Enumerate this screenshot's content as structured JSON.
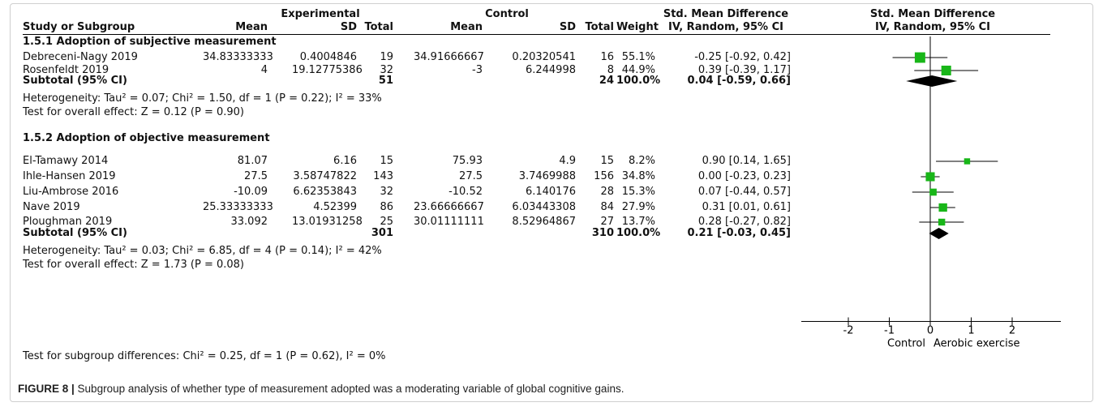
{
  "chart_data": {
    "type": "forest",
    "column_groups": {
      "experimental": "Experimental",
      "control": "Control",
      "smd_ci": "Std. Mean Difference",
      "smd_plot": "Std. Mean Difference"
    },
    "columns": {
      "study": "Study or Subgroup",
      "mean_e": "Mean",
      "sd_e": "SD",
      "total_e": "Total",
      "mean_c": "Mean",
      "sd_c": "SD",
      "total_c": "Total",
      "weight": "Weight",
      "method_ci": "IV, Random, 95% CI",
      "method_plot": "IV, Random, 95% CI"
    },
    "subgroups": [
      {
        "title": "1.5.1 Adoption of subjective measurement",
        "studies": [
          {
            "name": "Debreceni-Nagy 2019",
            "mean_e": "34.83333333",
            "sd_e": "0.4004846",
            "total_e": "19",
            "mean_c": "34.91666667",
            "sd_c": "0.20320541",
            "total_c": "16",
            "weight": "55.1%",
            "ci_text": "-0.25 [-0.92, 0.42]",
            "est": -0.25,
            "lo": -0.92,
            "hi": 0.42,
            "w": 55.1
          },
          {
            "name": "Rosenfeldt 2019",
            "mean_e": "4",
            "sd_e": "19.12775386",
            "total_e": "32",
            "mean_c": "-3",
            "sd_c": "6.244998",
            "total_c": "8",
            "weight": "44.9%",
            "ci_text": "0.39 [-0.39, 1.17]",
            "est": 0.39,
            "lo": -0.39,
            "hi": 1.17,
            "w": 44.9
          }
        ],
        "subtotal": {
          "label": "Subtotal (95% CI)",
          "total_e": "51",
          "total_c": "24",
          "weight": "100.0%",
          "ci_text": "0.04 [-0.59, 0.66]",
          "est": 0.04,
          "lo": -0.59,
          "hi": 0.66
        },
        "heterogeneity": "Heterogeneity: Tau² = 0.07; Chi² = 1.50, df = 1 (P = 0.22); I² = 33%",
        "overall": "Test for overall effect: Z = 0.12 (P = 0.90)"
      },
      {
        "title": "1.5.2 Adoption of objective measurement",
        "studies": [
          {
            "name": "El-Tamawy 2014",
            "mean_e": "81.07",
            "sd_e": "6.16",
            "total_e": "15",
            "mean_c": "75.93",
            "sd_c": "4.9",
            "total_c": "15",
            "weight": "8.2%",
            "ci_text": "0.90 [0.14, 1.65]",
            "est": 0.9,
            "lo": 0.14,
            "hi": 1.65,
            "w": 8.2
          },
          {
            "name": "Ihle-Hansen 2019",
            "mean_e": "27.5",
            "sd_e": "3.58747822",
            "total_e": "143",
            "mean_c": "27.5",
            "sd_c": "3.7469988",
            "total_c": "156",
            "weight": "34.8%",
            "ci_text": "0.00 [-0.23, 0.23]",
            "est": 0.0,
            "lo": -0.23,
            "hi": 0.23,
            "w": 34.8
          },
          {
            "name": "Liu-Ambrose 2016",
            "mean_e": "-10.09",
            "sd_e": "6.62353843",
            "total_e": "32",
            "mean_c": "-10.52",
            "sd_c": "6.140176",
            "total_c": "28",
            "weight": "15.3%",
            "ci_text": "0.07 [-0.44, 0.57]",
            "est": 0.07,
            "lo": -0.44,
            "hi": 0.57,
            "w": 15.3
          },
          {
            "name": "Nave 2019",
            "mean_e": "25.33333333",
            "sd_e": "4.52399",
            "total_e": "86",
            "mean_c": "23.66666667",
            "sd_c": "6.03443308",
            "total_c": "84",
            "weight": "27.9%",
            "ci_text": "0.31 [0.01, 0.61]",
            "est": 0.31,
            "lo": 0.01,
            "hi": 0.61,
            "w": 27.9
          },
          {
            "name": "Ploughman 2019",
            "mean_e": "33.092",
            "sd_e": "13.01931258",
            "total_e": "25",
            "mean_c": "30.01111111",
            "sd_c": "8.52964867",
            "total_c": "27",
            "weight": "13.7%",
            "ci_text": "0.28 [-0.27, 0.82]",
            "est": 0.28,
            "lo": -0.27,
            "hi": 0.82,
            "w": 13.7
          }
        ],
        "subtotal": {
          "label": "Subtotal (95% CI)",
          "total_e": "301",
          "total_c": "310",
          "weight": "100.0%",
          "ci_text": "0.21 [-0.03, 0.45]",
          "est": 0.21,
          "lo": -0.03,
          "hi": 0.45
        },
        "heterogeneity": "Heterogeneity: Tau² = 0.03; Chi² = 6.85, df = 4 (P = 0.14); I² = 42%",
        "overall": "Test for overall effect: Z = 1.73 (P = 0.08)"
      }
    ],
    "subgroup_differences": "Test for subgroup differences: Chi² = 0.25, df = 1 (P = 0.62), I² = 0%",
    "x_axis": {
      "ticks": [
        -2,
        -1,
        0,
        1,
        2
      ],
      "tick_labels": [
        "-2",
        "-1",
        "0",
        "1",
        "2"
      ],
      "range": [
        -2,
        2
      ]
    },
    "favours_left": "Control",
    "favours_right": "Aerobic exercise",
    "colors": {
      "square": "#18b618",
      "diamond": "#000000",
      "line": "#000000"
    }
  },
  "caption": {
    "label": "FIGURE 8 |",
    "text": " Subgroup analysis of whether type of measurement adopted was a moderating variable of global cognitive gains."
  }
}
